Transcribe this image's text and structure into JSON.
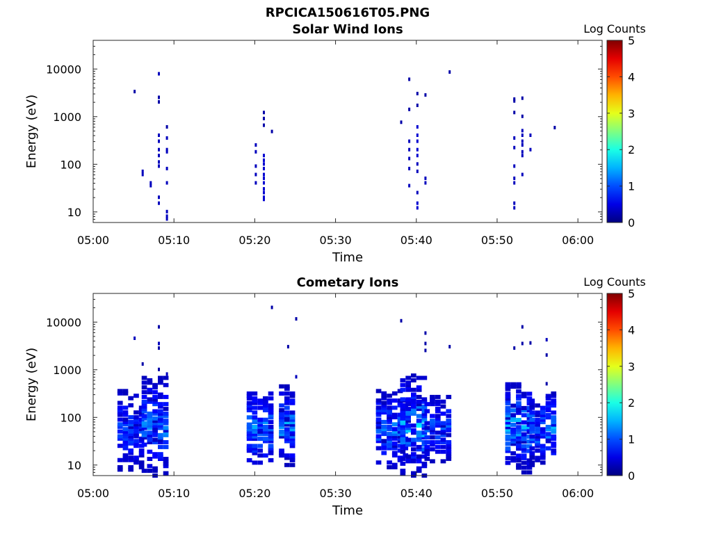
{
  "figure": {
    "title": "RPCICA150616T05.PNG"
  },
  "chart_data": [
    {
      "type": "heatmap",
      "title": "Solar Wind Ions",
      "xlabel": "Time",
      "ylabel": "Energy (eV)",
      "x_ticks": [
        "05:00",
        "05:10",
        "05:20",
        "05:30",
        "05:40",
        "05:50",
        "06:00"
      ],
      "y_ticks": [
        "10",
        "100",
        "1000",
        "10000"
      ],
      "y_scale": "log",
      "xlim": [
        "05:00",
        "06:03"
      ],
      "ylim": [
        6,
        40000
      ],
      "colorbar": {
        "label": "Log Counts",
        "range": [
          0,
          5
        ],
        "ticks": [
          "0",
          "1",
          "2",
          "3",
          "4",
          "5"
        ],
        "colormap": "jet"
      },
      "points": [
        [
          "05:05",
          3300,
          0.2
        ],
        [
          "05:06",
          70,
          0.3
        ],
        [
          "05:06",
          60,
          0.3
        ],
        [
          "05:07",
          35,
          0.3
        ],
        [
          "05:07",
          40,
          0.3
        ],
        [
          "05:08",
          7800,
          0.3
        ],
        [
          "05:08",
          2500,
          0.2
        ],
        [
          "05:08",
          2000,
          0.2
        ],
        [
          "05:08",
          400,
          0.3
        ],
        [
          "05:08",
          300,
          0.3
        ],
        [
          "05:08",
          200,
          0.3
        ],
        [
          "05:08",
          150,
          0.3
        ],
        [
          "05:08",
          110,
          0.3
        ],
        [
          "05:08",
          90,
          0.3
        ],
        [
          "05:08",
          20,
          0.3
        ],
        [
          "05:08",
          15,
          0.3
        ],
        [
          "05:09",
          600,
          0.2
        ],
        [
          "05:09",
          350,
          0.3
        ],
        [
          "05:09",
          200,
          0.3
        ],
        [
          "05:09",
          180,
          0.3
        ],
        [
          "05:09",
          80,
          0.3
        ],
        [
          "05:09",
          40,
          0.3
        ],
        [
          "05:09",
          10,
          0.3
        ],
        [
          "05:09",
          8,
          0.3
        ],
        [
          "05:09",
          7,
          0.3
        ],
        [
          "05:20",
          250,
          0.3
        ],
        [
          "05:20",
          180,
          0.3
        ],
        [
          "05:20",
          90,
          0.3
        ],
        [
          "05:20",
          60,
          0.3
        ],
        [
          "05:20",
          40,
          0.3
        ],
        [
          "05:21",
          150,
          0.4
        ],
        [
          "05:21",
          120,
          0.4
        ],
        [
          "05:21",
          100,
          0.4
        ],
        [
          "05:21",
          80,
          0.4
        ],
        [
          "05:21",
          60,
          0.4
        ],
        [
          "05:21",
          50,
          0.4
        ],
        [
          "05:21",
          40,
          0.4
        ],
        [
          "05:21",
          30,
          0.4
        ],
        [
          "05:21",
          25,
          0.4
        ],
        [
          "05:21",
          20,
          0.4
        ],
        [
          "05:21",
          18,
          0.4
        ],
        [
          "05:21",
          1200,
          0.2
        ],
        [
          "05:21",
          900,
          0.2
        ],
        [
          "05:21",
          650,
          0.2
        ],
        [
          "05:22",
          480,
          0.2
        ],
        [
          "05:38",
          750,
          0.2
        ],
        [
          "05:39",
          6000,
          0.2
        ],
        [
          "05:39",
          1400,
          0.2
        ],
        [
          "05:39",
          300,
          0.3
        ],
        [
          "05:39",
          200,
          0.3
        ],
        [
          "05:39",
          130,
          0.3
        ],
        [
          "05:39",
          80,
          0.3
        ],
        [
          "05:39",
          35,
          0.3
        ],
        [
          "05:40",
          3000,
          0.2
        ],
        [
          "05:40",
          1700,
          0.2
        ],
        [
          "05:40",
          600,
          0.4
        ],
        [
          "05:40",
          400,
          0.4
        ],
        [
          "05:40",
          300,
          0.4
        ],
        [
          "05:40",
          200,
          0.4
        ],
        [
          "05:40",
          150,
          0.4
        ],
        [
          "05:40",
          100,
          0.3
        ],
        [
          "05:40",
          70,
          0.3
        ],
        [
          "05:40",
          25,
          0.3
        ],
        [
          "05:40",
          15,
          0.4
        ],
        [
          "05:40",
          12,
          0.4
        ],
        [
          "05:41",
          2800,
          0.2
        ],
        [
          "05:41",
          50,
          0.3
        ],
        [
          "05:41",
          40,
          0.3
        ],
        [
          "05:44",
          8500,
          0.2
        ],
        [
          "05:52",
          2300,
          0.2
        ],
        [
          "05:52",
          2100,
          0.2
        ],
        [
          "05:52",
          1200,
          0.2
        ],
        [
          "05:52",
          350,
          0.3
        ],
        [
          "05:52",
          220,
          0.3
        ],
        [
          "05:52",
          90,
          0.3
        ],
        [
          "05:52",
          50,
          0.3
        ],
        [
          "05:52",
          40,
          0.3
        ],
        [
          "05:52",
          15,
          0.3
        ],
        [
          "05:52",
          12,
          0.3
        ],
        [
          "05:53",
          2400,
          0.2
        ],
        [
          "05:53",
          1000,
          0.2
        ],
        [
          "05:53",
          500,
          0.3
        ],
        [
          "05:53",
          400,
          0.3
        ],
        [
          "05:53",
          300,
          0.3
        ],
        [
          "05:53",
          250,
          0.3
        ],
        [
          "05:53",
          180,
          0.3
        ],
        [
          "05:53",
          150,
          0.3
        ],
        [
          "05:53",
          60,
          0.3
        ],
        [
          "05:54",
          400,
          0.3
        ],
        [
          "05:54",
          200,
          0.3
        ],
        [
          "05:57",
          580,
          0.2
        ]
      ]
    },
    {
      "type": "heatmap",
      "title": "Cometary Ions",
      "xlabel": "Time",
      "ylabel": "Energy (eV)",
      "x_ticks": [
        "05:00",
        "05:10",
        "05:20",
        "05:30",
        "05:40",
        "05:50",
        "06:00"
      ],
      "y_ticks": [
        "10",
        "100",
        "1000",
        "10000"
      ],
      "y_scale": "log",
      "xlim": [
        "05:00",
        "06:03"
      ],
      "ylim": [
        6,
        40000
      ],
      "colorbar": {
        "label": "Log Counts",
        "range": [
          0,
          5
        ],
        "ticks": [
          "0",
          "1",
          "2",
          "3",
          "4",
          "5"
        ],
        "colormap": "jet"
      },
      "clusters": [
        {
          "t": [
            "05:03",
            "05:06"
          ],
          "e": [
            8,
            400
          ],
          "level": [
            0.3,
            1.2
          ]
        },
        {
          "t": [
            "05:06",
            "05:09"
          ],
          "e": [
            6,
            700
          ],
          "level": [
            0.3,
            1.5
          ]
        },
        {
          "t": [
            "05:19",
            "05:22"
          ],
          "e": [
            10,
            350
          ],
          "level": [
            0.4,
            1.6
          ]
        },
        {
          "t": [
            "05:23",
            "05:25"
          ],
          "e": [
            10,
            450
          ],
          "level": [
            0.3,
            1.7
          ]
        },
        {
          "t": [
            "05:35",
            "05:39"
          ],
          "e": [
            8,
            400
          ],
          "level": [
            0.3,
            1.5
          ]
        },
        {
          "t": [
            "05:38",
            "05:41"
          ],
          "e": [
            6,
            800
          ],
          "level": [
            0.3,
            1.9
          ]
        },
        {
          "t": [
            "05:41",
            "05:44"
          ],
          "e": [
            12,
            300
          ],
          "level": [
            0.3,
            1.3
          ]
        },
        {
          "t": [
            "05:51",
            "05:54"
          ],
          "e": [
            7,
            600
          ],
          "level": [
            0.3,
            1.8
          ]
        },
        {
          "t": [
            "05:54",
            "05:57"
          ],
          "e": [
            10,
            350
          ],
          "level": [
            0.3,
            1.6
          ]
        }
      ],
      "points": [
        [
          "05:05",
          4500,
          0.3
        ],
        [
          "05:06",
          1300,
          0.2
        ],
        [
          "05:08",
          7800,
          0.2
        ],
        [
          "05:08",
          3500,
          0.3
        ],
        [
          "05:08",
          2800,
          0.2
        ],
        [
          "05:08",
          1000,
          0.2
        ],
        [
          "05:09",
          800,
          0.3
        ],
        [
          "05:22",
          20000,
          0.2
        ],
        [
          "05:25",
          11500,
          0.2
        ],
        [
          "05:24",
          3000,
          0.2
        ],
        [
          "05:25",
          700,
          0.3
        ],
        [
          "05:38",
          10500,
          0.2
        ],
        [
          "05:41",
          5800,
          0.2
        ],
        [
          "05:41",
          3500,
          0.2
        ],
        [
          "05:41",
          2500,
          0.2
        ],
        [
          "05:44",
          3000,
          0.2
        ],
        [
          "05:53",
          7800,
          0.2
        ],
        [
          "05:52",
          2800,
          0.2
        ],
        [
          "05:53",
          3500,
          0.2
        ],
        [
          "05:54",
          3600,
          0.2
        ],
        [
          "05:56",
          4200,
          0.3
        ],
        [
          "05:56",
          2000,
          0.2
        ],
        [
          "05:56",
          500,
          0.2
        ]
      ]
    }
  ]
}
